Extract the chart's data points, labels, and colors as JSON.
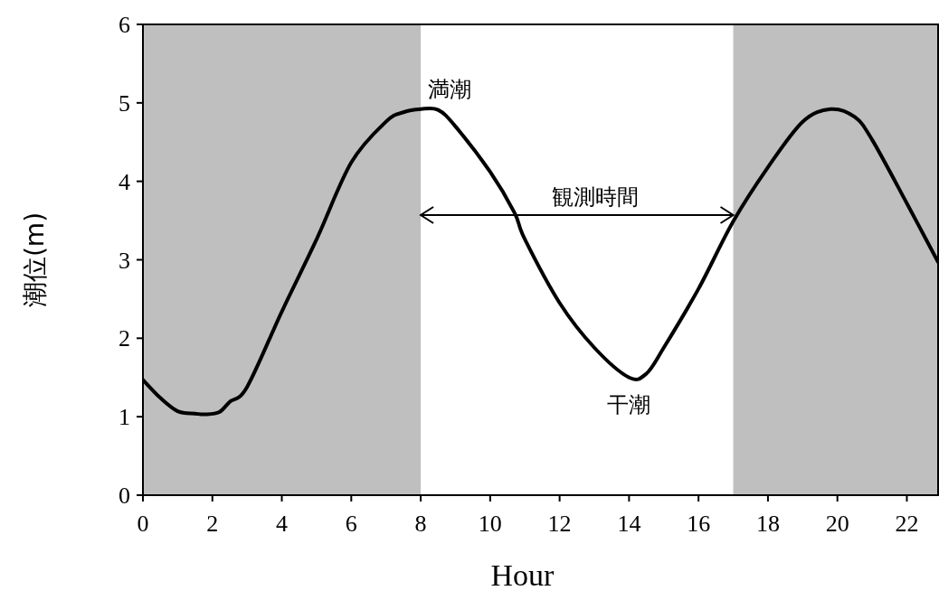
{
  "chart_data": {
    "type": "line",
    "xlabel": "Hour",
    "ylabel": "潮位(m)",
    "xlim": [
      0,
      22.9
    ],
    "ylim": [
      0,
      6
    ],
    "xticks": [
      0,
      2,
      4,
      6,
      8,
      10,
      12,
      14,
      16,
      18,
      20,
      22
    ],
    "yticks": [
      0,
      1,
      2,
      3,
      4,
      5,
      6
    ],
    "grid": false,
    "marker": "none",
    "line_style": "solid",
    "series": [
      {
        "color": "#000000",
        "x": [
          0,
          0.5,
          1,
          1.5,
          1.8,
          2.2,
          2.5,
          3,
          4,
          5,
          6,
          7,
          7.5,
          8,
          8.5,
          9,
          10,
          10.7,
          11,
          12,
          13,
          14,
          14.5,
          15,
          16,
          17,
          18,
          19,
          19.8,
          20.5,
          21,
          22,
          22.9
        ],
        "values": [
          1.47,
          1.24,
          1.07,
          1.04,
          1.03,
          1.06,
          1.19,
          1.38,
          2.34,
          3.26,
          4.24,
          4.76,
          4.88,
          4.92,
          4.91,
          4.7,
          4.12,
          3.6,
          3.26,
          2.45,
          1.88,
          1.5,
          1.55,
          1.88,
          2.63,
          3.49,
          4.18,
          4.76,
          4.92,
          4.82,
          4.53,
          3.72,
          2.97
        ]
      }
    ],
    "bands": [
      {
        "axis": "x",
        "from": 0,
        "to": 8,
        "color": "#bfbfbf"
      },
      {
        "axis": "x",
        "from": 17,
        "to": 22.9,
        "color": "#bfbfbf"
      }
    ],
    "annotations": [
      {
        "text": "満潮",
        "x": 8,
        "y": 4.92
      },
      "観測時間",
      {
        "text": "干潮",
        "x": 14,
        "y": 1.5
      }
    ]
  }
}
